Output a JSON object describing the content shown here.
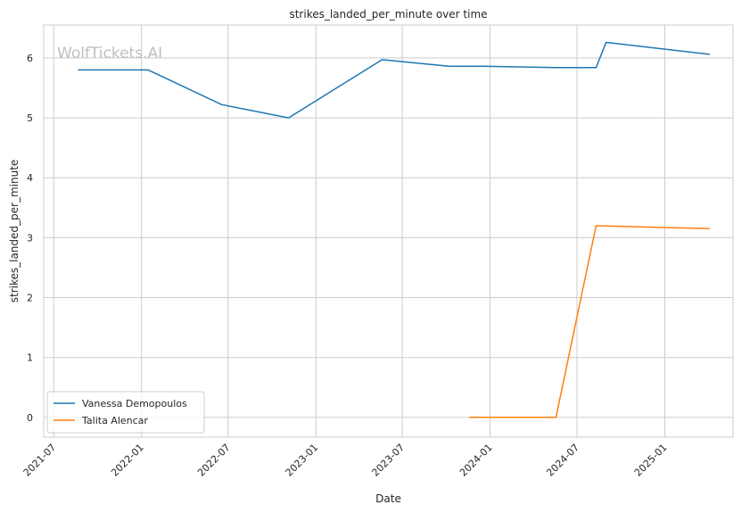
{
  "chart_data": {
    "type": "line",
    "title": "strikes_landed_per_minute over time",
    "xlabel": "Date",
    "ylabel": "strikes_landed_per_minute",
    "watermark": "WolfTickets.AI",
    "x_tick_labels": [
      "2021-07",
      "2022-01",
      "2022-07",
      "2023-01",
      "2023-07",
      "2024-01",
      "2024-07",
      "2025-01"
    ],
    "x_tick_dates": [
      "2021-07-01",
      "2022-01-01",
      "2022-07-01",
      "2023-01-01",
      "2023-07-01",
      "2024-01-01",
      "2024-07-01",
      "2025-01-01"
    ],
    "y_ticks": [
      0,
      1,
      2,
      3,
      4,
      5,
      6
    ],
    "xlim": [
      "2021-06-10",
      "2025-05-24"
    ],
    "ylim": [
      -0.33,
      6.55
    ],
    "grid": true,
    "legend_position": "lower-left",
    "series": [
      {
        "name": "Vanessa Demopoulos",
        "color": "#1f77b4",
        "points": [
          {
            "x": "2021-08-21",
            "y": 5.8
          },
          {
            "x": "2022-01-15",
            "y": 5.8
          },
          {
            "x": "2022-06-18",
            "y": 5.22
          },
          {
            "x": "2022-11-05",
            "y": 5.0
          },
          {
            "x": "2023-05-20",
            "y": 5.97
          },
          {
            "x": "2023-10-07",
            "y": 5.86
          },
          {
            "x": "2023-12-16",
            "y": 5.86
          },
          {
            "x": "2024-05-18",
            "y": 5.84
          },
          {
            "x": "2024-08-10",
            "y": 5.84
          },
          {
            "x": "2024-08-31",
            "y": 6.26
          },
          {
            "x": "2025-04-05",
            "y": 6.06
          }
        ]
      },
      {
        "name": "Talita Alencar",
        "color": "#ff7f0e",
        "points": [
          {
            "x": "2023-11-18",
            "y": 0.0
          },
          {
            "x": "2024-05-18",
            "y": 0.0
          },
          {
            "x": "2024-08-10",
            "y": 3.2
          },
          {
            "x": "2025-04-05",
            "y": 3.15
          }
        ]
      }
    ]
  }
}
